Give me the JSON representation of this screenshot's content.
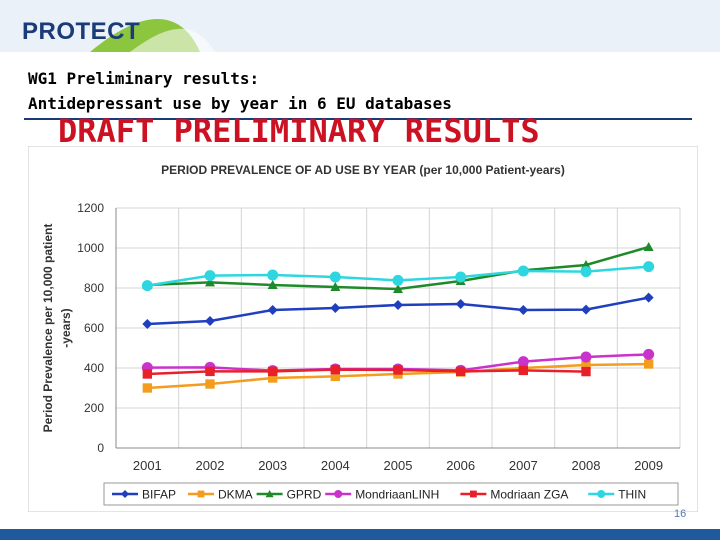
{
  "header": {
    "logo_text": "PROTECT",
    "title_line1": "WG1 Preliminary results:",
    "title_line2": "Antidepressant use by year in 6 EU databases",
    "draft_banner": "DRAFT PRELIMINARY RESULTS"
  },
  "footer": {
    "page_number": "16"
  },
  "colors": {
    "brand_navy": "#1a3a78",
    "brand_green": "#8cc63f",
    "draft_red": "#cc1122",
    "bottom_bar": "#1f5a9c"
  },
  "chart_data": {
    "type": "line",
    "title": "PERIOD PREVALENCE OF AD USE BY YEAR (per 10,000 Patient-years)",
    "xlabel": "",
    "ylabel_line1": "Period Prevalence per  10,000 patient",
    "ylabel_line2": "-years)",
    "ylim": [
      0,
      1200
    ],
    "yticks": [
      0,
      200,
      400,
      600,
      800,
      1000,
      1200
    ],
    "grid": true,
    "legend_position": "bottom",
    "categories": [
      "2001",
      "2002",
      "2003",
      "2004",
      "2005",
      "2006",
      "2007",
      "2008",
      "2009"
    ],
    "series": [
      {
        "name": "BIFAP",
        "color": "#1f3fbf",
        "marker": "diamond",
        "values": [
          620,
          635,
          690,
          700,
          715,
          720,
          690,
          692,
          752
        ]
      },
      {
        "name": "DKMA",
        "color": "#f39c1e",
        "marker": "square",
        "values": [
          300,
          320,
          350,
          358,
          370,
          380,
          400,
          415,
          420
        ]
      },
      {
        "name": "GPRD",
        "color": "#1f8a2a",
        "marker": "triangle",
        "values": [
          815,
          828,
          815,
          805,
          795,
          835,
          888,
          915,
          1005
        ]
      },
      {
        "name": "MondriaanLINH",
        "color": "#c933cc",
        "marker": "circle",
        "values": [
          402,
          403,
          387,
          395,
          395,
          388,
          432,
          455,
          468
        ]
      },
      {
        "name": "Modriaan ZGA",
        "color": "#e8202a",
        "marker": "square",
        "values": [
          370,
          383,
          383,
          392,
          390,
          383,
          388,
          382,
          null
        ]
      },
      {
        "name": "THIN",
        "color": "#2ed6e0",
        "marker": "circle",
        "values": [
          812,
          862,
          865,
          855,
          838,
          855,
          885,
          882,
          907
        ]
      }
    ]
  }
}
